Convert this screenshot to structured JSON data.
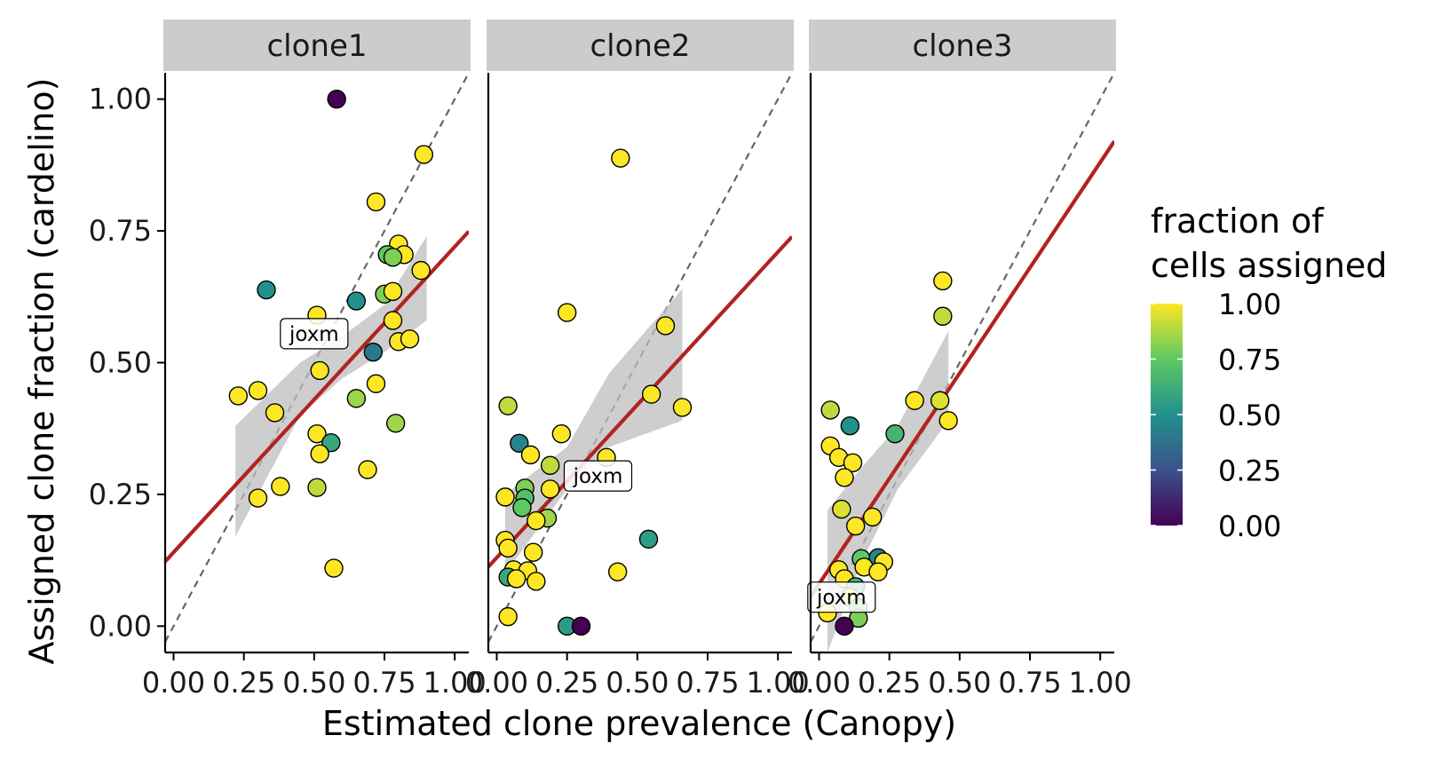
{
  "chart_data": {
    "type": "scatter",
    "ylabel": "Assigned clone fraction (cardelino)",
    "xlabel": "Estimated clone prevalence (Canopy)",
    "xlim": [
      -0.03,
      1.05
    ],
    "ylim": [
      -0.05,
      1.05
    ],
    "x_ticks": [
      0,
      0.25,
      0.5,
      0.75,
      1.0
    ],
    "x_tick_labels": [
      "0.00",
      "0.25",
      "0.50",
      "0.75",
      "1.00"
    ],
    "y_ticks": [
      0,
      0.25,
      0.5,
      0.75,
      1.0
    ],
    "y_tick_labels": [
      "0.00",
      "0.25",
      "0.50",
      "0.75",
      "1.00"
    ],
    "reference_line": "y = x (dashed)",
    "grid": false,
    "legend": {
      "title_lines": [
        "fraction of",
        "cells assigned"
      ],
      "placement": "right",
      "type": "colorbar",
      "colormap": "viridis",
      "range": [
        0,
        1
      ],
      "ticks": [
        0,
        0.25,
        0.5,
        0.75,
        1.0
      ],
      "tick_labels": [
        "0.00",
        "0.25",
        "0.50",
        "0.75",
        "1.00"
      ]
    },
    "colors": {
      "fit_line": "#b22222",
      "ribbon": "#bebebe",
      "strip_bg": "#cccccc",
      "identity_line": "#666666",
      "viridis": [
        "#440154",
        "#3b528b",
        "#21918c",
        "#5ec962",
        "#fde725"
      ]
    },
    "panels": [
      {
        "title": "clone1",
        "fit": {
          "intercept": 0.14,
          "slope": 0.58
        },
        "ribbon": [
          [
            0.22,
            0.38,
            0.17
          ],
          [
            0.45,
            0.5,
            0.4
          ],
          [
            0.6,
            0.55,
            0.47
          ],
          [
            0.75,
            0.61,
            0.52
          ],
          [
            0.9,
            0.74,
            0.58
          ]
        ],
        "label": {
          "text": "joxm",
          "x": 0.5,
          "y": 0.555
        },
        "points": [
          {
            "x": 0.58,
            "y": 1.0,
            "c": 0.0
          },
          {
            "x": 0.89,
            "y": 0.895,
            "c": 1.0
          },
          {
            "x": 0.72,
            "y": 0.805,
            "c": 1.0
          },
          {
            "x": 0.8,
            "y": 0.725,
            "c": 1.0
          },
          {
            "x": 0.82,
            "y": 0.705,
            "c": 1.0
          },
          {
            "x": 0.76,
            "y": 0.705,
            "c": 0.75
          },
          {
            "x": 0.78,
            "y": 0.7,
            "c": 0.8
          },
          {
            "x": 0.88,
            "y": 0.675,
            "c": 1.0
          },
          {
            "x": 0.33,
            "y": 0.638,
            "c": 0.5
          },
          {
            "x": 0.75,
            "y": 0.63,
            "c": 0.8
          },
          {
            "x": 0.78,
            "y": 0.635,
            "c": 1.0
          },
          {
            "x": 0.65,
            "y": 0.617,
            "c": 0.5
          },
          {
            "x": 0.51,
            "y": 0.59,
            "c": 1.0
          },
          {
            "x": 0.78,
            "y": 0.58,
            "c": 1.0
          },
          {
            "x": 0.8,
            "y": 0.54,
            "c": 1.0
          },
          {
            "x": 0.84,
            "y": 0.545,
            "c": 1.0
          },
          {
            "x": 0.71,
            "y": 0.52,
            "c": 0.4
          },
          {
            "x": 0.52,
            "y": 0.485,
            "c": 1.0
          },
          {
            "x": 0.72,
            "y": 0.46,
            "c": 1.0
          },
          {
            "x": 0.23,
            "y": 0.437,
            "c": 1.0
          },
          {
            "x": 0.3,
            "y": 0.447,
            "c": 1.0
          },
          {
            "x": 0.65,
            "y": 0.432,
            "c": 0.85
          },
          {
            "x": 0.36,
            "y": 0.405,
            "c": 1.0
          },
          {
            "x": 0.79,
            "y": 0.385,
            "c": 0.85
          },
          {
            "x": 0.51,
            "y": 0.365,
            "c": 1.0
          },
          {
            "x": 0.56,
            "y": 0.348,
            "c": 0.6
          },
          {
            "x": 0.52,
            "y": 0.327,
            "c": 1.0
          },
          {
            "x": 0.69,
            "y": 0.297,
            "c": 1.0
          },
          {
            "x": 0.38,
            "y": 0.265,
            "c": 1.0
          },
          {
            "x": 0.51,
            "y": 0.263,
            "c": 0.9
          },
          {
            "x": 0.3,
            "y": 0.243,
            "c": 1.0
          },
          {
            "x": 0.57,
            "y": 0.11,
            "c": 1.0
          }
        ]
      },
      {
        "title": "clone2",
        "fit": {
          "intercept": 0.13,
          "slope": 0.58
        },
        "ribbon": [
          [
            0.03,
            0.25,
            0.1
          ],
          [
            0.25,
            0.34,
            0.26
          ],
          [
            0.4,
            0.48,
            0.34
          ],
          [
            0.66,
            0.64,
            0.39
          ]
        ],
        "label": {
          "text": "joxm",
          "x": 0.36,
          "y": 0.285
        },
        "points": [
          {
            "x": 0.44,
            "y": 0.888,
            "c": 1.0
          },
          {
            "x": 0.25,
            "y": 0.595,
            "c": 1.0
          },
          {
            "x": 0.6,
            "y": 0.57,
            "c": 1.0
          },
          {
            "x": 0.55,
            "y": 0.44,
            "c": 1.0
          },
          {
            "x": 0.66,
            "y": 0.415,
            "c": 1.0
          },
          {
            "x": 0.04,
            "y": 0.418,
            "c": 0.9
          },
          {
            "x": 0.23,
            "y": 0.365,
            "c": 1.0
          },
          {
            "x": 0.08,
            "y": 0.347,
            "c": 0.45
          },
          {
            "x": 0.12,
            "y": 0.325,
            "c": 1.0
          },
          {
            "x": 0.39,
            "y": 0.32,
            "c": 1.0
          },
          {
            "x": 0.19,
            "y": 0.305,
            "c": 0.9
          },
          {
            "x": 0.19,
            "y": 0.26,
            "c": 1.0
          },
          {
            "x": 0.1,
            "y": 0.262,
            "c": 0.8
          },
          {
            "x": 0.03,
            "y": 0.245,
            "c": 1.0
          },
          {
            "x": 0.1,
            "y": 0.243,
            "c": 0.7
          },
          {
            "x": 0.09,
            "y": 0.225,
            "c": 0.75
          },
          {
            "x": 0.18,
            "y": 0.205,
            "c": 0.85
          },
          {
            "x": 0.14,
            "y": 0.2,
            "c": 1.0
          },
          {
            "x": 0.03,
            "y": 0.163,
            "c": 1.0
          },
          {
            "x": 0.54,
            "y": 0.165,
            "c": 0.55
          },
          {
            "x": 0.04,
            "y": 0.148,
            "c": 1.0
          },
          {
            "x": 0.13,
            "y": 0.14,
            "c": 1.0
          },
          {
            "x": 0.06,
            "y": 0.107,
            "c": 1.0
          },
          {
            "x": 0.11,
            "y": 0.105,
            "c": 1.0
          },
          {
            "x": 0.43,
            "y": 0.103,
            "c": 1.0
          },
          {
            "x": 0.04,
            "y": 0.093,
            "c": 0.6
          },
          {
            "x": 0.07,
            "y": 0.09,
            "c": 1.0
          },
          {
            "x": 0.14,
            "y": 0.085,
            "c": 1.0
          },
          {
            "x": 0.04,
            "y": 0.018,
            "c": 1.0
          },
          {
            "x": 0.25,
            "y": 0.0,
            "c": 0.55
          },
          {
            "x": 0.3,
            "y": 0.0,
            "c": 0.0
          }
        ]
      },
      {
        "title": "clone3",
        "fit": {
          "intercept": 0.08,
          "slope": 0.8
        },
        "ribbon": [
          [
            0.03,
            0.22,
            -0.05
          ],
          [
            0.15,
            0.3,
            0.12
          ],
          [
            0.28,
            0.38,
            0.26
          ],
          [
            0.46,
            0.56,
            0.39
          ]
        ],
        "label": {
          "text": "joxm",
          "x": 0.08,
          "y": 0.055
        },
        "points": [
          {
            "x": 0.44,
            "y": 0.655,
            "c": 1.0
          },
          {
            "x": 0.44,
            "y": 0.588,
            "c": 0.9
          },
          {
            "x": 0.34,
            "y": 0.428,
            "c": 1.0
          },
          {
            "x": 0.43,
            "y": 0.428,
            "c": 0.95
          },
          {
            "x": 0.46,
            "y": 0.39,
            "c": 1.0
          },
          {
            "x": 0.04,
            "y": 0.41,
            "c": 0.9
          },
          {
            "x": 0.11,
            "y": 0.38,
            "c": 0.5
          },
          {
            "x": 0.27,
            "y": 0.365,
            "c": 0.65
          },
          {
            "x": 0.04,
            "y": 0.342,
            "c": 1.0
          },
          {
            "x": 0.07,
            "y": 0.32,
            "c": 1.0
          },
          {
            "x": 0.12,
            "y": 0.31,
            "c": 1.0
          },
          {
            "x": 0.09,
            "y": 0.282,
            "c": 1.0
          },
          {
            "x": 0.08,
            "y": 0.222,
            "c": 0.95
          },
          {
            "x": 0.19,
            "y": 0.207,
            "c": 1.0
          },
          {
            "x": 0.13,
            "y": 0.19,
            "c": 1.0
          },
          {
            "x": 0.15,
            "y": 0.128,
            "c": 0.75
          },
          {
            "x": 0.21,
            "y": 0.13,
            "c": 0.45
          },
          {
            "x": 0.23,
            "y": 0.122,
            "c": 1.0
          },
          {
            "x": 0.16,
            "y": 0.112,
            "c": 1.0
          },
          {
            "x": 0.07,
            "y": 0.107,
            "c": 1.0
          },
          {
            "x": 0.21,
            "y": 0.103,
            "c": 1.0
          },
          {
            "x": 0.09,
            "y": 0.09,
            "c": 1.0
          },
          {
            "x": 0.13,
            "y": 0.075,
            "c": 0.65
          },
          {
            "x": 0.11,
            "y": 0.055,
            "c": 1.0
          },
          {
            "x": 0.14,
            "y": 0.035,
            "c": 0.75
          },
          {
            "x": 0.03,
            "y": 0.025,
            "c": 1.0
          },
          {
            "x": 0.14,
            "y": 0.015,
            "c": 0.8
          },
          {
            "x": 0.09,
            "y": 0.0,
            "c": 0.0
          }
        ]
      }
    ]
  }
}
